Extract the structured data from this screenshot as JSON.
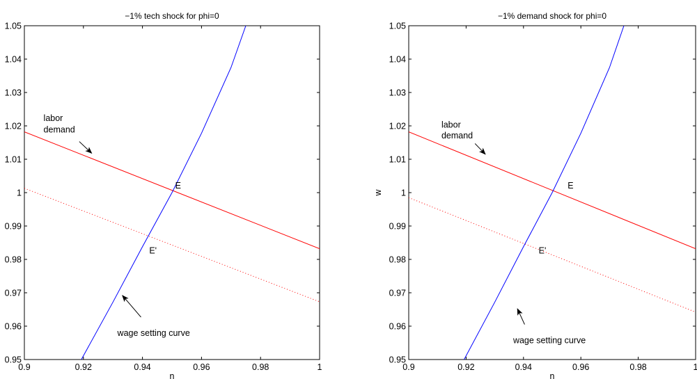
{
  "chart_data": [
    {
      "type": "line",
      "title": "−1% tech shock for phi=0",
      "xlabel": "n",
      "ylabel": "",
      "xlim": [
        0.9,
        1.0
      ],
      "ylim": [
        0.95,
        1.05
      ],
      "xticks": [
        0.9,
        0.92,
        0.94,
        0.96,
        0.98,
        1.0
      ],
      "xtick_labels": [
        "0.9",
        "0.92",
        "0.94",
        "0.96",
        "0.98",
        "1"
      ],
      "yticks": [
        0.95,
        0.96,
        0.97,
        0.98,
        0.99,
        1.0,
        1.01,
        1.02,
        1.03,
        1.04,
        1.05
      ],
      "ytick_labels": [
        "0.95",
        "0.96",
        "0.97",
        "0.98",
        "0.99",
        "1",
        "1.01",
        "1.02",
        "1.03",
        "1.04",
        "1.05"
      ],
      "grid": false,
      "series": [
        {
          "color": "#ff0000",
          "style": "solid",
          "x": [
            0.9,
            1.0
          ],
          "y": [
            1.0182,
            0.9832
          ]
        },
        {
          "color": "#ff0000",
          "style": "dotted",
          "x": [
            0.9,
            1.0
          ],
          "y": [
            1.0013,
            0.9673
          ]
        },
        {
          "color": "#0000ff",
          "style": "solid",
          "x": [
            0.9193,
            0.93,
            0.94,
            0.95,
            0.96,
            0.97,
            0.975
          ],
          "y": [
            0.95,
            0.9672,
            0.9838,
            1.0,
            1.0178,
            1.0375,
            1.05
          ]
        }
      ],
      "annotations": [
        {
          "text": "labor",
          "x": 0.9065,
          "y": 1.0215
        },
        {
          "text": "demand",
          "x": 0.9065,
          "y": 1.018
        },
        {
          "text": "E",
          "x": 0.9511,
          "y": 1.0012
        },
        {
          "text": "E'",
          "x": 0.9423,
          "y": 0.9818
        },
        {
          "text": "wage setting curve",
          "x": 0.9315,
          "y": 0.9571
        }
      ],
      "arrows": [
        {
          "from": [
            0.9186,
            1.0153
          ],
          "to": [
            0.9228,
            1.0118
          ]
        },
        {
          "from": [
            0.9395,
            0.9627
          ],
          "to": [
            0.9332,
            0.9692
          ]
        }
      ]
    },
    {
      "type": "line",
      "title": "−1% demand shock for phi=0",
      "xlabel": "n",
      "ylabel": "w",
      "xlim": [
        0.9,
        1.0
      ],
      "ylim": [
        0.95,
        1.05
      ],
      "xticks": [
        0.9,
        0.92,
        0.94,
        0.96,
        0.98,
        1.0
      ],
      "xtick_labels": [
        "0.9",
        "0.92",
        "0.94",
        "0.96",
        "0.98",
        "1"
      ],
      "yticks": [
        0.95,
        0.96,
        0.97,
        0.98,
        0.99,
        1.0,
        1.01,
        1.02,
        1.03,
        1.04,
        1.05
      ],
      "ytick_labels": [
        "0.95",
        "0.96",
        "0.97",
        "0.98",
        "0.99",
        "1",
        "1.01",
        "1.02",
        "1.03",
        "1.04",
        "1.05"
      ],
      "grid": false,
      "series": [
        {
          "color": "#ff0000",
          "style": "solid",
          "x": [
            0.9,
            1.0
          ],
          "y": [
            1.0182,
            0.9832
          ]
        },
        {
          "color": "#ff0000",
          "style": "dotted",
          "x": [
            0.9,
            1.0
          ],
          "y": [
            0.9985,
            0.9642
          ]
        },
        {
          "color": "#0000ff",
          "style": "solid",
          "x": [
            0.9193,
            0.93,
            0.94,
            0.95,
            0.96,
            0.97,
            0.975
          ],
          "y": [
            0.95,
            0.9672,
            0.9838,
            1.0,
            1.0178,
            1.0375,
            1.05
          ]
        }
      ],
      "annotations": [
        {
          "text": "labor",
          "x": 0.9114,
          "y": 1.0195
        },
        {
          "text": "demand",
          "x": 0.9114,
          "y": 1.0162
        },
        {
          "text": "E",
          "x": 0.9554,
          "y": 1.0012
        },
        {
          "text": "E'",
          "x": 0.9453,
          "y": 0.9818
        },
        {
          "text": "wage setting curve",
          "x": 0.9364,
          "y": 0.9549
        }
      ],
      "arrows": [
        {
          "from": [
            0.9231,
            1.0147
          ],
          "to": [
            0.9267,
            1.0115
          ]
        },
        {
          "from": [
            0.9404,
            0.9605
          ],
          "to": [
            0.9379,
            0.9652
          ]
        }
      ]
    }
  ]
}
